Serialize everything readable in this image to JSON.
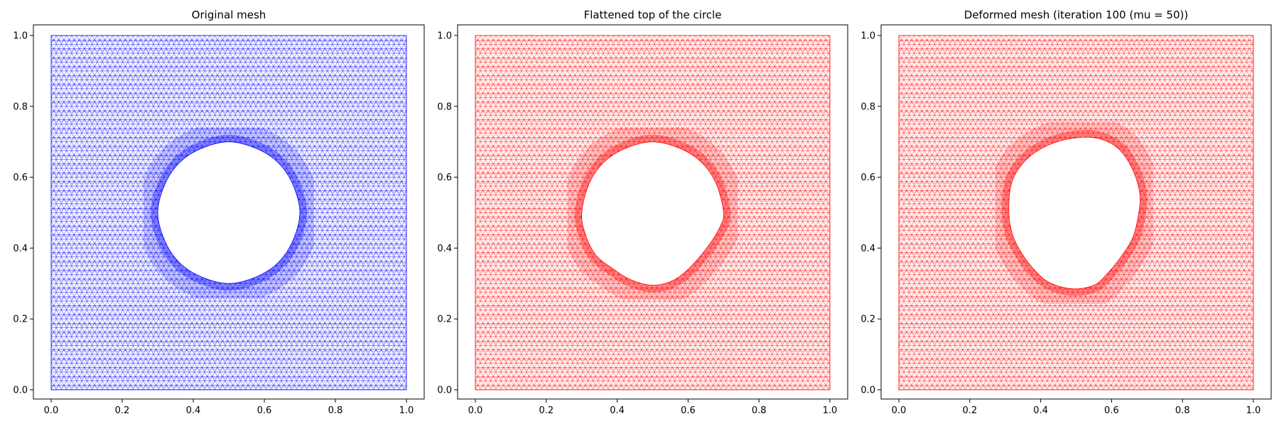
{
  "chart_data": [
    {
      "type": "mesh",
      "title": "Original mesh",
      "color": "#0000ff",
      "hole": {
        "cx": 0.5,
        "cy": 0.5,
        "r": 0.2
      },
      "xlim": [
        0.0,
        1.0
      ],
      "ylim": [
        0.0,
        1.0
      ],
      "xticks": [
        "0.0",
        "0.2",
        "0.4",
        "0.6",
        "0.8",
        "1.0"
      ],
      "yticks": [
        "0.0",
        "0.2",
        "0.4",
        "0.6",
        "0.8",
        "1.0"
      ],
      "hole_outline": [
        [
          0.7,
          0.5
        ],
        [
          0.68,
          0.58
        ],
        [
          0.64,
          0.64
        ],
        [
          0.58,
          0.68
        ],
        [
          0.5,
          0.7
        ],
        [
          0.42,
          0.68
        ],
        [
          0.36,
          0.64
        ],
        [
          0.32,
          0.58
        ],
        [
          0.3,
          0.5
        ],
        [
          0.32,
          0.42
        ],
        [
          0.36,
          0.36
        ],
        [
          0.42,
          0.32
        ],
        [
          0.5,
          0.3
        ],
        [
          0.58,
          0.32
        ],
        [
          0.64,
          0.36
        ],
        [
          0.68,
          0.42
        ]
      ]
    },
    {
      "type": "mesh",
      "title": "Flattened top of the circle",
      "color": "#ff0000",
      "xlim": [
        0.0,
        1.0
      ],
      "ylim": [
        0.0,
        1.0
      ],
      "xticks": [
        "0.0",
        "0.2",
        "0.4",
        "0.6",
        "0.8",
        "1.0"
      ],
      "yticks": [
        "0.0",
        "0.2",
        "0.4",
        "0.6",
        "0.8",
        "1.0"
      ],
      "hole_outline": [
        [
          0.7,
          0.5
        ],
        [
          0.68,
          0.58
        ],
        [
          0.64,
          0.64
        ],
        [
          0.58,
          0.68
        ],
        [
          0.5,
          0.7
        ],
        [
          0.42,
          0.68
        ],
        [
          0.36,
          0.64
        ],
        [
          0.32,
          0.58
        ],
        [
          0.3,
          0.5
        ],
        [
          0.31,
          0.44
        ],
        [
          0.34,
          0.38
        ],
        [
          0.39,
          0.34
        ],
        [
          0.44,
          0.31
        ],
        [
          0.5,
          0.295
        ],
        [
          0.56,
          0.31
        ],
        [
          0.61,
          0.35
        ],
        [
          0.66,
          0.41
        ],
        [
          0.69,
          0.46
        ]
      ]
    },
    {
      "type": "mesh",
      "title": "Deformed mesh (iteration 100 (mu = 50))",
      "color": "#ff0000",
      "xlim": [
        0.0,
        1.0
      ],
      "ylim": [
        0.0,
        1.0
      ],
      "xticks": [
        "0.0",
        "0.2",
        "0.4",
        "0.6",
        "0.8",
        "1.0"
      ],
      "yticks": [
        "0.0",
        "0.2",
        "0.4",
        "0.6",
        "0.8",
        "1.0"
      ],
      "hole_outline": [
        [
          0.68,
          0.55
        ],
        [
          0.66,
          0.62
        ],
        [
          0.62,
          0.68
        ],
        [
          0.56,
          0.71
        ],
        [
          0.49,
          0.71
        ],
        [
          0.42,
          0.69
        ],
        [
          0.36,
          0.65
        ],
        [
          0.32,
          0.59
        ],
        [
          0.31,
          0.51
        ],
        [
          0.32,
          0.44
        ],
        [
          0.35,
          0.38
        ],
        [
          0.39,
          0.33
        ],
        [
          0.43,
          0.3
        ],
        [
          0.49,
          0.285
        ],
        [
          0.55,
          0.295
        ],
        [
          0.59,
          0.33
        ],
        [
          0.63,
          0.38
        ],
        [
          0.66,
          0.43
        ],
        [
          0.675,
          0.49
        ]
      ]
    }
  ]
}
